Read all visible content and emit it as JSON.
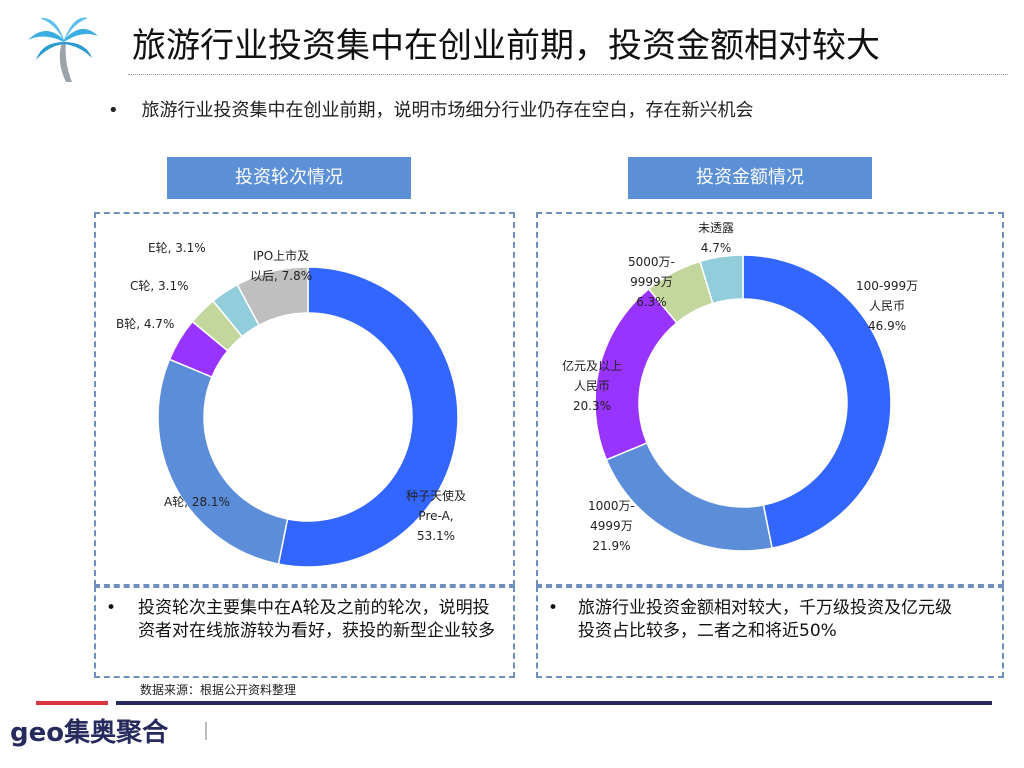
{
  "title": "旅游行业投资集中在创业前期，投资金额相对较大",
  "bullet": "旅游行业投资集中在创业前期，说明市场细分行业仍存在空白，存在新兴机会",
  "watermark": "geo集奥聚合",
  "chart_data": [
    {
      "type": "pie",
      "donut": true,
      "title": "投资轮次情况",
      "categories": [
        "种子天使及Pre-A",
        "A轮",
        "B轮",
        "C轮",
        "E轮",
        "IPO上市及以后"
      ],
      "values": [
        53.1,
        28.1,
        4.7,
        3.1,
        3.1,
        7.8
      ],
      "labels": [
        "种子天使及\nPre-A,\n53.1%",
        "A轮, 28.1%",
        "B轮, 4.7%",
        "C轮, 3.1%",
        "E轮, 3.1%",
        "IPO上市及\n以后, 7.8%"
      ],
      "colors": [
        "#3366ff",
        "#5b8dd9",
        "#9933ff",
        "#c3d69b",
        "#92cddc",
        "#bfbfbf"
      ]
    },
    {
      "type": "pie",
      "donut": true,
      "title": "投资金额情况",
      "categories": [
        "100-999万人民币",
        "1000万-4999万",
        "亿元及以上人民币",
        "5000万-9999万",
        "未透露"
      ],
      "values": [
        46.9,
        21.9,
        20.3,
        6.3,
        4.7
      ],
      "labels": [
        "100-999万\n人民币\n46.9%",
        "1000万-\n4999万\n21.9%",
        "亿元及以上\n人民币\n20.3%",
        "5000万-\n9999万\n6.3%",
        "未透露\n4.7%"
      ],
      "colors": [
        "#3366ff",
        "#5b8dd9",
        "#9933ff",
        "#c3d69b",
        "#92cddc"
      ]
    }
  ],
  "notes": [
    "投资轮次主要集中在A轮及之前的轮次，说明投资者对在线旅游较为看好，获投的新型企业较多",
    "旅游行业投资金额相对较大，千万级投资及亿元级投资占比较多，二者之和将近50%"
  ],
  "source": "数据来源：根据公开资料整理",
  "logo": {
    "text": "geo集奥聚合"
  }
}
